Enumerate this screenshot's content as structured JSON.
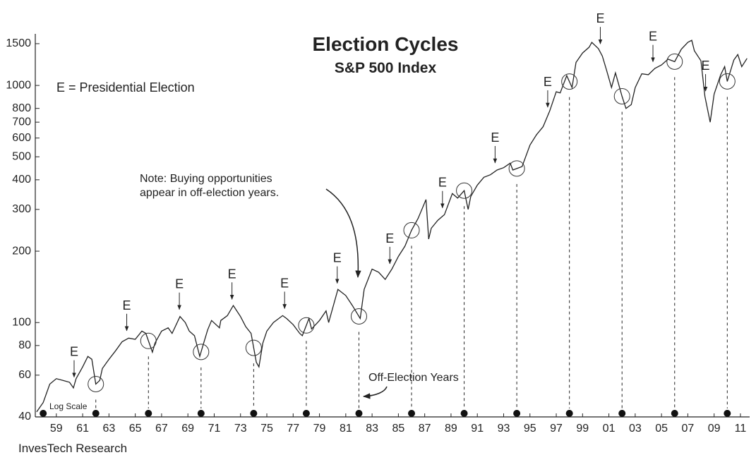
{
  "chart_data": {
    "type": "line",
    "title": "Election Cycles",
    "subtitle": "S&P 500 Index",
    "legend_note": "E = Presidential Election",
    "note": [
      "Note: Buying opportunities",
      "appear in off-election years."
    ],
    "off_election_label": "Off-Election Years",
    "scale_label": "Log Scale",
    "source": "InvesTech Research",
    "log_scale": true,
    "color": "#222222",
    "xlim": [
      1957.9,
      2012.2
    ],
    "ylim": [
      40,
      1650
    ],
    "yticks": [
      40,
      60,
      80,
      100,
      200,
      300,
      400,
      500,
      600,
      700,
      800,
      1000,
      1500
    ],
    "xticks": [
      {
        "value": 1959.5,
        "label": "59"
      },
      {
        "value": 1961.5,
        "label": "61"
      },
      {
        "value": 1963.5,
        "label": "63"
      },
      {
        "value": 1965.5,
        "label": "65"
      },
      {
        "value": 1967.5,
        "label": "67"
      },
      {
        "value": 1969.5,
        "label": "69"
      },
      {
        "value": 1971.5,
        "label": "71"
      },
      {
        "value": 1973.5,
        "label": "73"
      },
      {
        "value": 1975.5,
        "label": "75"
      },
      {
        "value": 1977.5,
        "label": "77"
      },
      {
        "value": 1979.5,
        "label": "79"
      },
      {
        "value": 1981.5,
        "label": "81"
      },
      {
        "value": 1983.5,
        "label": "83"
      },
      {
        "value": 1985.5,
        "label": "85"
      },
      {
        "value": 1987.5,
        "label": "87"
      },
      {
        "value": 1989.5,
        "label": "89"
      },
      {
        "value": 1991.5,
        "label": "91"
      },
      {
        "value": 1993.5,
        "label": "93"
      },
      {
        "value": 1995.5,
        "label": "95"
      },
      {
        "value": 1997.5,
        "label": "97"
      },
      {
        "value": 1999.5,
        "label": "99"
      },
      {
        "value": 2001.5,
        "label": "01"
      },
      {
        "value": 2003.5,
        "label": "03"
      },
      {
        "value": 2005.5,
        "label": "05"
      },
      {
        "value": 2007.5,
        "label": "07"
      },
      {
        "value": 2009.5,
        "label": "09"
      },
      {
        "value": 2011.5,
        "label": "11"
      }
    ],
    "election_label": "E",
    "election_years": [
      1960.85,
      1964.85,
      1968.85,
      1972.85,
      1976.85,
      1980.85,
      1984.85,
      1988.85,
      1992.85,
      1996.85,
      2000.85,
      2004.85,
      2008.85
    ],
    "cycle_dots": [
      1958.5,
      1962.5,
      1966.5,
      1970.5,
      1974.5,
      1978.5,
      1982.5,
      1986.5,
      1990.5,
      1994.5,
      1998.5,
      2002.5,
      2006.5,
      2010.5
    ],
    "buying_opportunities": [
      1962.5,
      1966.5,
      1970.5,
      1974.5,
      1978.5,
      1982.5,
      1986.5,
      1990.5,
      1994.5,
      1998.5,
      2002.5,
      2006.5,
      2010.5
    ],
    "series": [
      {
        "name": "S&P 500 Index",
        "color": "#222222",
        "x": [
          1958.0,
          1958.5,
          1959.0,
          1959.5,
          1960.0,
          1960.5,
          1960.8,
          1961.0,
          1961.5,
          1961.9,
          1962.2,
          1962.5,
          1962.8,
          1963.0,
          1963.5,
          1964.0,
          1964.5,
          1965.0,
          1965.5,
          1966.0,
          1966.3,
          1966.8,
          1967.0,
          1967.5,
          1968.0,
          1968.3,
          1968.9,
          1969.3,
          1969.6,
          1970.0,
          1970.4,
          1970.7,
          1971.0,
          1971.3,
          1971.9,
          1972.0,
          1972.5,
          1972.95,
          1973.5,
          1973.9,
          1974.3,
          1974.7,
          1974.9,
          1975.2,
          1975.5,
          1976.0,
          1976.7,
          1977.0,
          1977.5,
          1978.0,
          1978.2,
          1978.7,
          1978.9,
          1979.5,
          1980.0,
          1980.2,
          1980.9,
          1981.5,
          1982.0,
          1982.6,
          1982.9,
          1983.5,
          1984.0,
          1984.5,
          1985.0,
          1985.5,
          1986.0,
          1986.5,
          1987.0,
          1987.6,
          1987.8,
          1988.0,
          1988.5,
          1989.0,
          1989.6,
          1990.0,
          1990.5,
          1990.8,
          1991.0,
          1991.5,
          1992.0,
          1992.5,
          1993.0,
          1993.5,
          1994.0,
          1994.2,
          1994.9,
          1995.5,
          1996.0,
          1996.5,
          1997.0,
          1997.5,
          1997.8,
          1998.3,
          1998.7,
          1999.0,
          1999.5,
          2000.0,
          2000.2,
          2000.7,
          2001.0,
          2001.3,
          2001.7,
          2002.0,
          2002.5,
          2002.8,
          2003.2,
          2003.5,
          2004.0,
          2004.5,
          2005.0,
          2005.5,
          2006.0,
          2006.5,
          2007.0,
          2007.5,
          2007.8,
          2008.0,
          2008.5,
          2008.8,
          2009.2,
          2009.5,
          2010.0,
          2010.3,
          2010.5,
          2011.0,
          2011.3,
          2011.6,
          2012.0
        ],
        "values": [
          42,
          46,
          55,
          58,
          57,
          56,
          53,
          58,
          65,
          72,
          70,
          55,
          57,
          64,
          70,
          76,
          83,
          86,
          85,
          92,
          90,
          75,
          82,
          92,
          95,
          90,
          106,
          100,
          92,
          88,
          72,
          82,
          93,
          102,
          95,
          102,
          107,
          118,
          106,
          96,
          90,
          68,
          65,
          82,
          92,
          100,
          107,
          104,
          98,
          90,
          88,
          104,
          94,
          102,
          112,
          100,
          138,
          130,
          118,
          104,
          138,
          168,
          163,
          152,
          168,
          190,
          210,
          245,
          275,
          330,
          225,
          250,
          270,
          285,
          350,
          335,
          360,
          300,
          340,
          380,
          410,
          420,
          440,
          450,
          470,
          440,
          455,
          560,
          620,
          670,
          780,
          940,
          930,
          1100,
          980,
          1250,
          1370,
          1450,
          1520,
          1430,
          1330,
          1170,
          980,
          1130,
          900,
          800,
          830,
          980,
          1120,
          1110,
          1180,
          1220,
          1290,
          1260,
          1420,
          1520,
          1550,
          1400,
          1270,
          900,
          700,
          920,
          1110,
          1200,
          1040,
          1280,
          1350,
          1200,
          1300
        ]
      }
    ]
  }
}
